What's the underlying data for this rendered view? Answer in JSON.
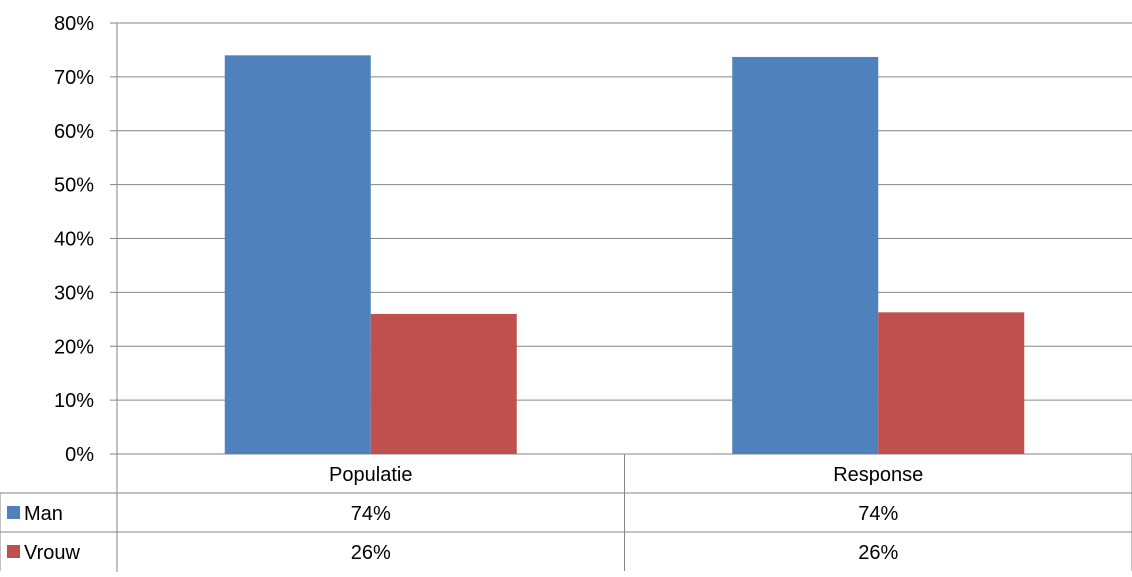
{
  "chart_data": {
    "type": "bar",
    "categories": [
      "Populatie",
      "Response"
    ],
    "series": [
      {
        "name": "Man",
        "values": [
          74,
          73.7
        ],
        "color": "#4F81BD",
        "table_labels": [
          "74%",
          "74%"
        ]
      },
      {
        "name": "Vrouw",
        "values": [
          26,
          26.3
        ],
        "color": "#C0504D",
        "table_labels": [
          "26%",
          "26%"
        ]
      }
    ],
    "y_ticks": [
      "0%",
      "10%",
      "20%",
      "30%",
      "40%",
      "50%",
      "60%",
      "70%",
      "80%"
    ],
    "ylim": [
      0,
      80
    ],
    "y_unit": "%",
    "grid": true,
    "legend": "data-table"
  }
}
